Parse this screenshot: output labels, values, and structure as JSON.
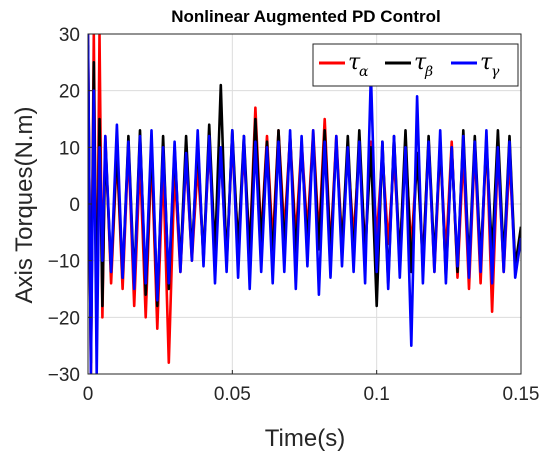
{
  "chart_data": {
    "type": "line",
    "title": "Nonlinear Augmented PD Control",
    "xlabel": "Time(s)",
    "ylabel": "Axis Torques(N.m)",
    "xlim": [
      0,
      0.15
    ],
    "ylim": [
      -30,
      30
    ],
    "x_ticks": [
      0,
      0.05,
      0.1,
      0.15
    ],
    "x_tick_labels": [
      "0",
      "0.05",
      "0.1",
      "0.15"
    ],
    "y_ticks": [
      -30,
      -20,
      -10,
      0,
      10,
      20,
      30
    ],
    "y_tick_labels": [
      "−30",
      "−20",
      "−10",
      "0",
      "10",
      "20",
      "30"
    ],
    "grid": true,
    "legend_position": "top-right",
    "x": [
      0,
      0.001,
      0.002,
      0.003,
      0.004,
      0.005,
      0.006,
      0.008,
      0.01,
      0.012,
      0.014,
      0.016,
      0.018,
      0.02,
      0.022,
      0.024,
      0.026,
      0.028,
      0.03,
      0.032,
      0.034,
      0.036,
      0.038,
      0.04,
      0.042,
      0.044,
      0.046,
      0.048,
      0.05,
      0.052,
      0.054,
      0.056,
      0.058,
      0.06,
      0.062,
      0.064,
      0.066,
      0.068,
      0.07,
      0.072,
      0.074,
      0.076,
      0.078,
      0.08,
      0.082,
      0.084,
      0.086,
      0.088,
      0.09,
      0.092,
      0.094,
      0.096,
      0.098,
      0.1,
      0.102,
      0.104,
      0.106,
      0.108,
      0.11,
      0.112,
      0.114,
      0.116,
      0.118,
      0.12,
      0.122,
      0.124,
      0.126,
      0.128,
      0.13,
      0.132,
      0.134,
      0.136,
      0.138,
      0.14,
      0.142,
      0.144,
      0.146,
      0.148,
      0.15
    ],
    "series": [
      {
        "name": "α",
        "color": "#ff0000",
        "values": [
          30,
          -30,
          30,
          -25,
          30,
          -20,
          12,
          -14,
          9,
          -15,
          10,
          -18,
          8,
          -20,
          9,
          -22,
          7,
          -28,
          6,
          -12,
          8,
          -10,
          7,
          -9,
          10,
          -8,
          9,
          -10,
          11,
          -7,
          9,
          -8,
          17,
          -6,
          12,
          -7,
          13,
          -5,
          12,
          -6,
          11,
          -5,
          13,
          -6,
          15,
          -8,
          12,
          -7,
          9,
          -6,
          10,
          -8,
          11,
          -6,
          9,
          -7,
          8,
          -9,
          10,
          -8,
          9,
          -10,
          11,
          -12,
          10,
          -9,
          11,
          -13,
          9,
          -15,
          10,
          -14,
          12,
          -19,
          9,
          -12,
          8,
          -11,
          -5
        ]
      },
      {
        "name": "β",
        "color": "#000000",
        "values": [
          28,
          -28,
          25,
          -22,
          15,
          -18,
          11,
          -12,
          10,
          -13,
          12,
          -14,
          13,
          -16,
          11,
          -18,
          12,
          -15,
          10,
          -11,
          12,
          -9,
          11,
          -10,
          14,
          -9,
          21,
          -11,
          13,
          -8,
          12,
          -9,
          15,
          -7,
          11,
          -10,
          13,
          -8,
          12,
          -9,
          10,
          -7,
          12,
          -8,
          13,
          -9,
          11,
          -8,
          12,
          -10,
          13,
          -9,
          10,
          -18,
          11,
          -14,
          12,
          -10,
          13,
          -12,
          9,
          -11,
          12,
          -10,
          11,
          -13,
          10,
          -12,
          13,
          -11,
          12,
          -10,
          11,
          -9,
          13,
          -10,
          12,
          -11,
          -4
        ]
      },
      {
        "name": "γ",
        "color": "#0000ff",
        "values": [
          30,
          -30,
          20,
          -30,
          10,
          -10,
          12,
          -12,
          14,
          -13,
          11,
          -15,
          12,
          -14,
          13,
          -17,
          10,
          -14,
          11,
          -12,
          9,
          -10,
          13,
          -11,
          12,
          -14,
          10,
          -12,
          13,
          -13,
          12,
          -15,
          11,
          -12,
          10,
          -14,
          11,
          -12,
          13,
          -15,
          12,
          -11,
          13,
          -16,
          11,
          -13,
          12,
          -11,
          10,
          -12,
          11,
          -14,
          23,
          -12,
          11,
          -15,
          12,
          -13,
          10,
          -25,
          19,
          -14,
          11,
          -12,
          13,
          -14,
          10,
          -11,
          12,
          -13,
          11,
          -12,
          13,
          -14,
          10,
          -12,
          11,
          -13,
          -6
        ]
      }
    ]
  }
}
